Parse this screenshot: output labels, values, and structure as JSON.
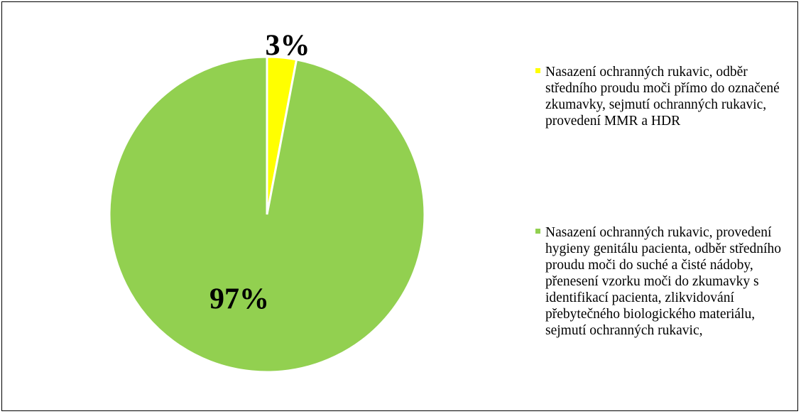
{
  "chart_data": {
    "type": "pie",
    "categories": [
      "Nasazení ochranných rukavic, odběr středního proudu moči přímo do označené zkumavky, sejmutí ochranných rukavic, provedení MMR a HDR",
      "Nasazení ochranných rukavic, provedení hygieny genitálu pacienta, odběr středního proudu moči do suché a čisté nádoby, přenesení vzorku moči do zkumavky s identifikací pacienta, zlikvidování přebytečného biologického materiálu, sejmutí ochranných rukavic,"
    ],
    "values": [
      3,
      97
    ],
    "value_labels": [
      "3%",
      "97%"
    ],
    "colors": [
      "#ffff00",
      "#92d050"
    ],
    "legend": "right"
  }
}
